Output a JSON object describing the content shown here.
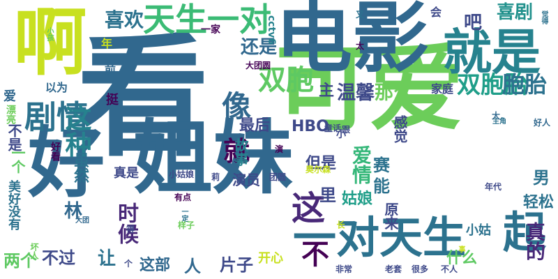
{
  "words": [
    {
      "text": "看",
      "color": "#31688e",
      "vertical": false
    },
    {
      "text": "可爱",
      "color": "#6ccd5a",
      "vertical": false
    },
    {
      "text": "电影",
      "color": "#31688e",
      "vertical": false
    },
    {
      "text": "姐妹",
      "color": "#31688e",
      "vertical": false
    },
    {
      "text": "好",
      "color": "#31688e",
      "vertical": true
    },
    {
      "text": "啊",
      "color": "#c8e020",
      "vertical": true
    },
    {
      "text": "就是",
      "color": "#26828e",
      "vertical": false
    },
    {
      "text": "一对天生",
      "color": "#2c728e",
      "vertical": false
    },
    {
      "text": "起",
      "color": "#2c728e",
      "vertical": true
    },
    {
      "text": "天生一对",
      "color": "#3bbb75",
      "vertical": false
    },
    {
      "text": "剧情",
      "color": "#2c728e",
      "vertical": false
    },
    {
      "text": "双胞胎",
      "color": "#1f9e89",
      "vertical": false
    },
    {
      "text": "双胞",
      "color": "#5ec962",
      "vertical": false
    },
    {
      "text": "像",
      "color": "#31688e",
      "vertical": false
    },
    {
      "text": "这种",
      "color": "#26828e",
      "vertical": true
    },
    {
      "text": "这",
      "color": "#482878",
      "vertical": false
    },
    {
      "text": "就",
      "color": "#440154",
      "vertical": false
    },
    {
      "text": "胞胎",
      "color": "#2c728e",
      "vertical": false
    },
    {
      "text": "喜欢",
      "color": "#2c728e",
      "vertical": false
    },
    {
      "text": "喜剧",
      "color": "#21918c",
      "vertical": false
    },
    {
      "text": "还是",
      "color": "#31688e",
      "vertical": false
    },
    {
      "text": "吧",
      "color": "#3e4989",
      "vertical": false
    },
    {
      "text": "温馨",
      "color": "#3e4989",
      "vertical": false
    },
    {
      "text": "那么",
      "color": "#6ccd5a",
      "vertical": false
    },
    {
      "text": "主",
      "color": "#3e4989",
      "vertical": false
    },
    {
      "text": "最后",
      "color": "#3e4989",
      "vertical": false
    },
    {
      "text": "HBO",
      "color": "#3e4989",
      "vertical": false
    },
    {
      "text": "但是",
      "color": "#3e4989",
      "vertical": false
    },
    {
      "text": "爱情",
      "color": "#35b779",
      "vertical": true
    },
    {
      "text": "姑娘",
      "color": "#1f9e89",
      "vertical": false
    },
    {
      "text": "里",
      "color": "#3e4989",
      "vertical": false
    },
    {
      "text": "赛",
      "color": "#2c728e",
      "vertical": false
    },
    {
      "text": "能",
      "color": "#2c728e",
      "vertical": false
    },
    {
      "text": "男",
      "color": "#2c728e",
      "vertical": false
    },
    {
      "text": "轻松",
      "color": "#2c728e",
      "vertical": false
    },
    {
      "text": "不过",
      "color": "#3e4989",
      "vertical": false
    },
    {
      "text": "让",
      "color": "#2c728e",
      "vertical": false
    },
    {
      "text": "两个",
      "color": "#5ec962",
      "vertical": false
    },
    {
      "text": "这部",
      "color": "#31688e",
      "vertical": false
    },
    {
      "text": "人",
      "color": "#31688e",
      "vertical": false
    },
    {
      "text": "片子",
      "color": "#3e4989",
      "vertical": false
    },
    {
      "text": "开心",
      "color": "#c8e020",
      "vertical": false
    },
    {
      "text": "不",
      "color": "#440154",
      "vertical": false
    },
    {
      "text": "什么",
      "color": "#5ec962",
      "vertical": false
    },
    {
      "text": "真的",
      "color": "#482878",
      "vertical": true
    },
    {
      "text": "时候",
      "color": "#482878",
      "vertical": true
    },
    {
      "text": "林",
      "color": "#31688e",
      "vertical": false
    },
    {
      "text": "虽然",
      "color": "#2c728e",
      "vertical": true
    },
    {
      "text": "故事",
      "color": "#26828e",
      "vertical": true
    },
    {
      "text": "演员",
      "color": "#3e4989",
      "vertical": false
    },
    {
      "text": "真是",
      "color": "#3e4989",
      "vertical": false
    },
    {
      "text": "感觉",
      "color": "#3e4989",
      "vertical": true
    },
    {
      "text": "不是",
      "color": "#3e4989",
      "vertical": true
    },
    {
      "text": "一家",
      "color": "#440154",
      "vertical": false
    },
    {
      "text": "cctv6",
      "color": "#26828e",
      "vertical": true
    },
    {
      "text": "会",
      "color": "#3e4989",
      "vertical": false
    },
    {
      "text": "以为",
      "color": "#31688e",
      "vertical": false
    },
    {
      "text": "前",
      "color": "#31688e",
      "vertical": false
    },
    {
      "text": "挺",
      "color": "#440154",
      "vertical": false
    },
    {
      "text": "家庭",
      "color": "#3e4989",
      "vertical": false
    },
    {
      "text": "原来",
      "color": "#3e4989",
      "vertical": true
    },
    {
      "text": "小姑",
      "color": "#2c728e",
      "vertical": false
    },
    {
      "text": "一个",
      "color": "#5ec962",
      "vertical": true
    },
    {
      "text": "美好没有",
      "color": "#2c728e",
      "vertical": true
    },
    {
      "text": "爱",
      "color": "#31688e",
      "vertical": false
    },
    {
      "text": "漂亮",
      "color": "#6ccd5a",
      "vertical": true
    },
    {
      "text": "好看",
      "color": "#440154",
      "vertical": true
    },
    {
      "text": "年",
      "color": "#c8e020",
      "vertical": false
    },
    {
      "text": "小孩",
      "color": "#5ec962",
      "vertical": true
    },
    {
      "text": "大团圆",
      "color": "#440154",
      "vertical": false
    },
    {
      "text": "太",
      "color": "#440154",
      "vertical": false
    },
    {
      "text": "又",
      "color": "#2c728e",
      "vertical": false
    },
    {
      "text": "觉得",
      "color": "#2c728e",
      "vertical": true
    },
    {
      "text": "主角",
      "color": "#2c728e",
      "vertical": false
    },
    {
      "text": "大",
      "color": "#31688e",
      "vertical": false
    },
    {
      "text": "好人",
      "color": "#31688e",
      "vertical": false
    },
    {
      "text": "童话",
      "color": "#3e4989",
      "vertical": false
    },
    {
      "text": "跟",
      "color": "#3e4989",
      "vertical": false
    },
    {
      "text": "小",
      "color": "#3e4989",
      "vertical": false
    },
    {
      "text": "演",
      "color": "#440154",
      "vertical": false
    },
    {
      "text": "莉",
      "color": "#3e4989",
      "vertical": false
    },
    {
      "text": "团圆",
      "color": "#3e4989",
      "vertical": false
    },
    {
      "text": "小姑娘",
      "color": "#3e4989",
      "vertical": false
    },
    {
      "text": "奥尔森",
      "color": "#c8e020",
      "vertical": false
    },
    {
      "text": "年代",
      "color": "#3e4989",
      "vertical": false
    },
    {
      "text": "长",
      "color": "#c8e020",
      "vertical": true
    },
    {
      "text": "有点",
      "color": "#440154",
      "vertical": false
    },
    {
      "text": "一定",
      "color": "#2c728e",
      "vertical": true
    },
    {
      "text": "样子",
      "color": "#6ccd5a",
      "vertical": false
    },
    {
      "text": "大团",
      "color": "#31688e",
      "vertical": false
    },
    {
      "text": "得",
      "color": "#3e4989",
      "vertical": false
    },
    {
      "text": "坏人",
      "color": "#6ccd5a",
      "vertical": true
    },
    {
      "text": "个",
      "color": "#3e4989",
      "vertical": false
    },
    {
      "text": "非常",
      "color": "#3e4989",
      "vertical": false
    },
    {
      "text": "老套",
      "color": "#3e4989",
      "vertical": false
    },
    {
      "text": "很多",
      "color": "#3e4989",
      "vertical": false
    },
    {
      "text": "不人",
      "color": "#3e4989",
      "vertical": false
    },
    {
      "text": "事",
      "color": "#c8e020",
      "vertical": true
    }
  ]
}
